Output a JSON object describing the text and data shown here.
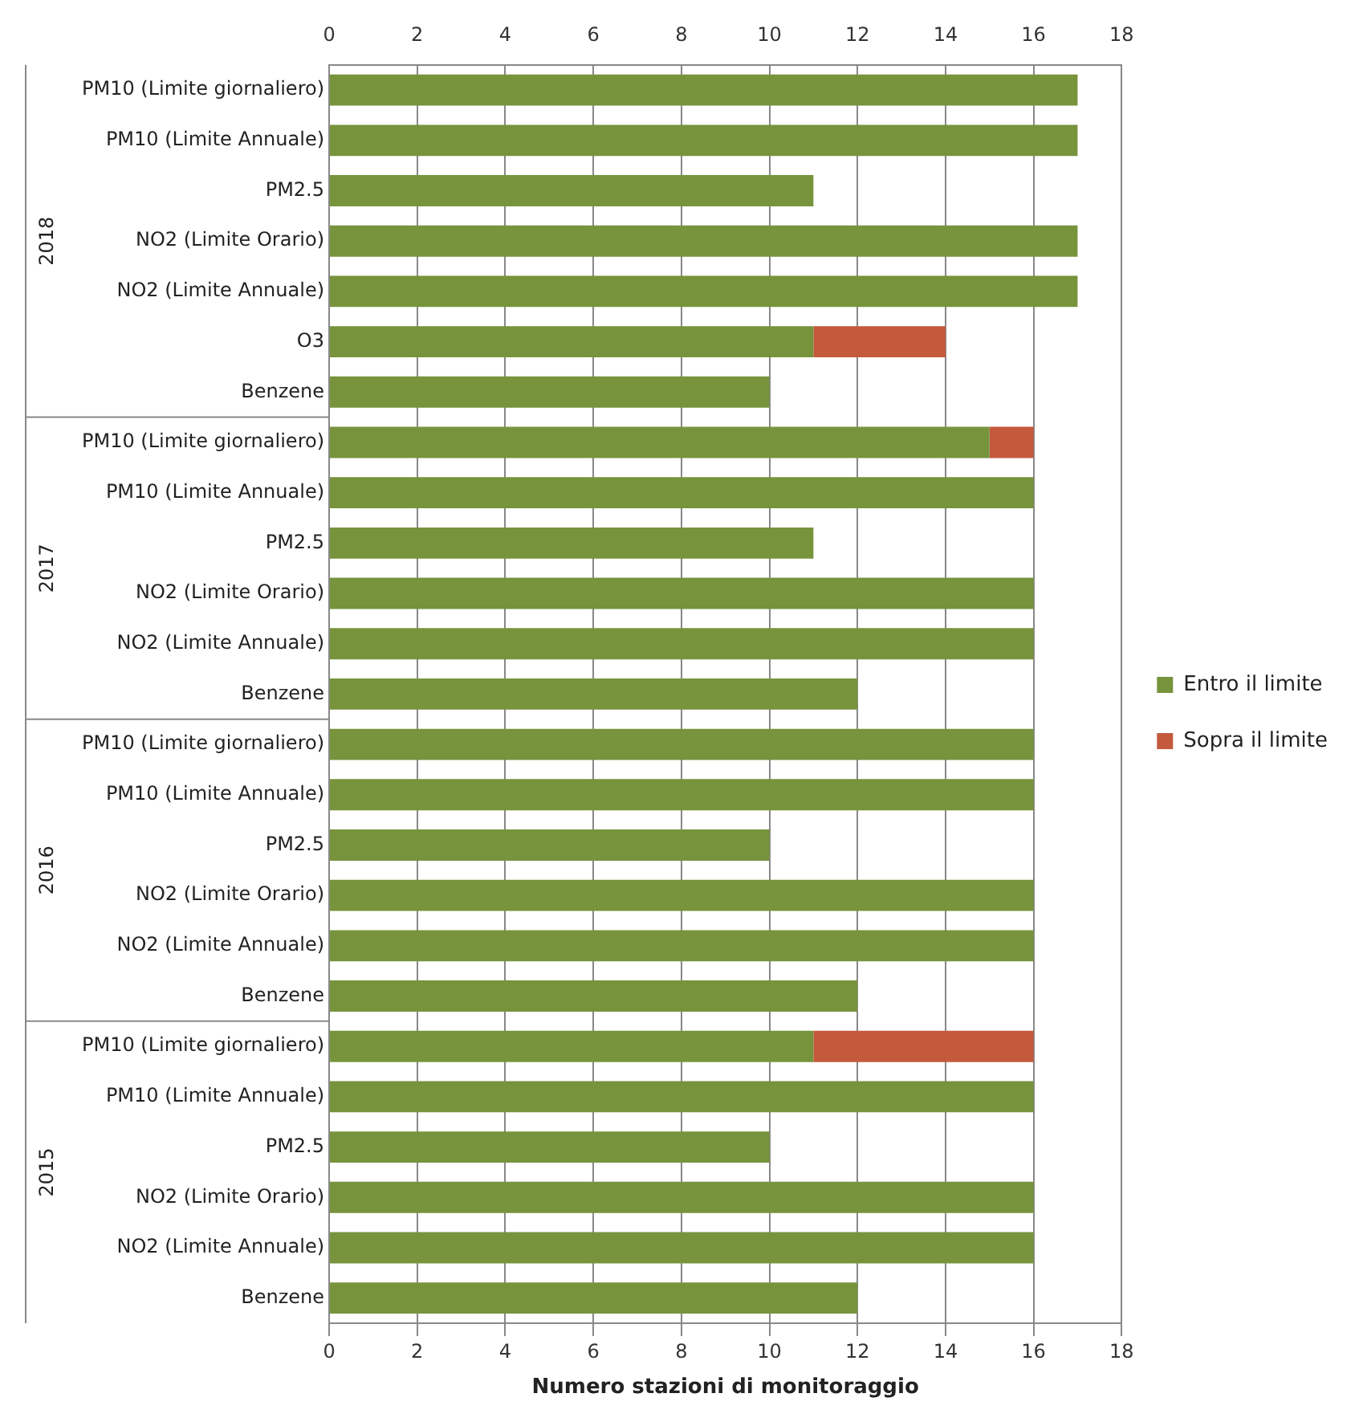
{
  "chart_data": {
    "type": "bar",
    "orientation": "horizontal",
    "stacked": true,
    "categories": [
      "PM10 (Limite giornaliero)",
      "PM10 (Limite Annuale)",
      "PM2.5",
      "NO2 (Limite Orario)",
      "NO2 (Limite Annuale)",
      "O3",
      "Benzene",
      "PM10 (Limite giornaliero)",
      "PM10 (Limite Annuale)",
      "PM2.5",
      "NO2 (Limite Orario)",
      "NO2 (Limite Annuale)",
      "Benzene",
      "PM10 (Limite giornaliero)",
      "PM10 (Limite Annuale)",
      "PM2.5",
      "NO2 (Limite Orario)",
      "NO2 (Limite Annuale)",
      "Benzene",
      "PM10 (Limite giornaliero)",
      "PM10 (Limite Annuale)",
      "PM2.5",
      "NO2 (Limite Orario)",
      "NO2 (Limite Annuale)",
      "Benzene"
    ],
    "series": [
      {
        "name": "Entro il limite",
        "color": "#77933c",
        "values": [
          17,
          17,
          11,
          17,
          17,
          11,
          10,
          15,
          16,
          11,
          16,
          16,
          12,
          16,
          16,
          10,
          16,
          16,
          12,
          11,
          16,
          10,
          16,
          16,
          12
        ]
      },
      {
        "name": "Sopra il limite",
        "color": "#c4593c",
        "values": [
          null,
          null,
          null,
          null,
          null,
          3,
          null,
          1,
          null,
          null,
          null,
          null,
          null,
          null,
          null,
          null,
          null,
          null,
          null,
          5,
          null,
          null,
          null,
          null,
          null
        ]
      }
    ],
    "annotations": [
      "2018",
      "2017",
      "2016",
      "2015"
    ],
    "xlabel": "Numero stazioni di monitoraggio",
    "xlim": [
      0,
      18
    ],
    "xticks": [
      0,
      2,
      4,
      6,
      8,
      10,
      12,
      14,
      16,
      18
    ],
    "x2lim": [
      0,
      18
    ],
    "x2ticks": [
      0,
      2,
      4,
      6,
      8,
      10,
      12,
      14,
      16,
      18
    ],
    "grid": "x",
    "legend": "right"
  }
}
